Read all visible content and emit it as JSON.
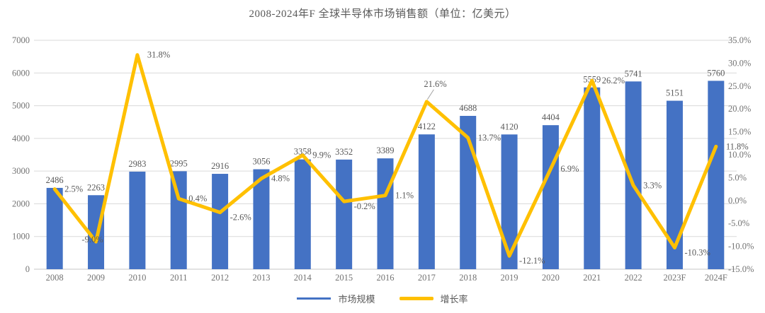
{
  "title": "2008-2024年F 全球半导体市场销售额（单位：亿美元）",
  "legend": {
    "market_size_label": "市场规模",
    "growth_rate_label": "增长率"
  },
  "colors": {
    "bar": "#4472C4",
    "line": "#FFC000",
    "grid": "#D9D9D9",
    "axis_line": "#C6C6C6",
    "label_text": "#595959",
    "axis_text": "#737373",
    "leader_line": "#A6A6A6"
  },
  "chart_data": {
    "type": "bar-line-combo",
    "title": "2008-2024年F 全球半导体市场销售额（单位：亿美元）",
    "categories": [
      "2008",
      "2009",
      "2010",
      "2011",
      "2012",
      "2013",
      "2014",
      "2015",
      "2016",
      "2017",
      "2018",
      "2019",
      "2020",
      "2021",
      "2022",
      "2023F",
      "2024F"
    ],
    "series": [
      {
        "name": "市场规模",
        "type": "bar",
        "axis": "left",
        "color": "#4472C4",
        "values": [
          2486,
          2263,
          2983,
          2995,
          2916,
          3056,
          3358,
          3352,
          3389,
          4122,
          4688,
          4120,
          4404,
          5559,
          5741,
          5151,
          5760
        ]
      },
      {
        "name": "增长率",
        "type": "line",
        "axis": "right",
        "color": "#FFC000",
        "values": [
          2.5,
          -9.0,
          31.8,
          0.4,
          -2.6,
          4.8,
          9.9,
          -0.2,
          1.1,
          21.6,
          13.7,
          -12.1,
          6.9,
          26.2,
          3.3,
          -10.3,
          11.8
        ],
        "labels": [
          "2.5%",
          "-9.0%",
          "31.8%",
          "0.4%",
          "-2.6%",
          "4.8%",
          "9.9%",
          "-0.2%",
          "1.1%",
          "21.6%",
          "13.7%",
          "-12.1%",
          "6.9%",
          "26.2%",
          "3.3%",
          "-10.3%",
          "11.8%"
        ]
      }
    ],
    "left_axis": {
      "min": 0,
      "max": 7000,
      "step": 1000,
      "ticks": [
        "0",
        "1000",
        "2000",
        "3000",
        "4000",
        "5000",
        "6000",
        "7000"
      ]
    },
    "right_axis": {
      "min": -15,
      "max": 35,
      "step": 5,
      "ticks": [
        "-15.0%",
        "-10.0%",
        "-5.0%",
        "0.0%",
        "5.0%",
        "10.0%",
        "15.0%",
        "20.0%",
        "25.0%",
        "30.0%",
        "35.0%"
      ]
    },
    "grid": true,
    "legend_position": "bottom",
    "callout_index": 9
  }
}
